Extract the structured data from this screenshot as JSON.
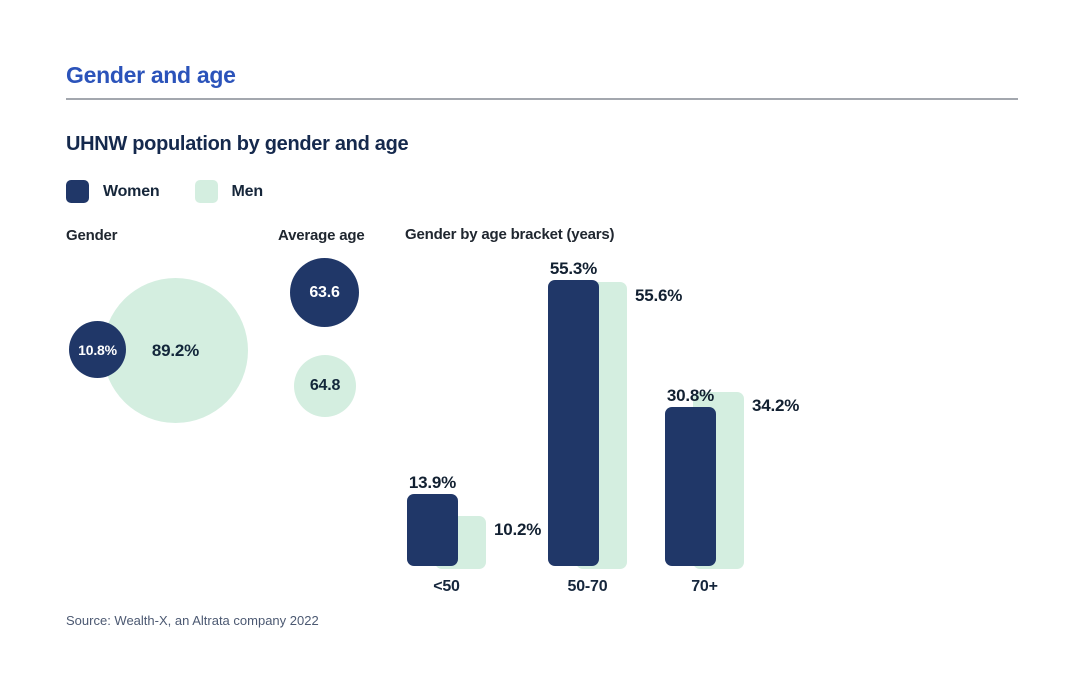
{
  "page": {
    "title": "Gender and age",
    "subtitle": "UHNW population by gender and age",
    "source": "Source: Wealth-X, an Altrata company 2022"
  },
  "colors": {
    "title_blue": "#2b53ba",
    "women_navy": "#203768",
    "men_mint": "#d4eee0",
    "dark_text": "#15294d",
    "source_text": "#4c5972",
    "divider": "#a3a7ae"
  },
  "legend": {
    "items": [
      {
        "label": "Women",
        "color": "#203768"
      },
      {
        "label": "Men",
        "color": "#d4eee0"
      }
    ],
    "position": "top-left"
  },
  "chart_data": [
    {
      "type": "pie",
      "variant": "proportional-bubbles",
      "title": "Gender",
      "unit": "%",
      "points": [
        {
          "label": "Women",
          "value": 10.8,
          "display": "10.8%",
          "color": "#203768"
        },
        {
          "label": "Men",
          "value": 89.2,
          "display": "89.2%",
          "color": "#d4eee0"
        }
      ]
    },
    {
      "type": "scatter",
      "variant": "value-bubbles",
      "title": "Average age",
      "unit": "years",
      "points": [
        {
          "label": "Women",
          "value": 63.6,
          "display": "63.6",
          "color": "#203768"
        },
        {
          "label": "Men",
          "value": 64.8,
          "display": "64.8",
          "color": "#d4eee0"
        }
      ]
    },
    {
      "type": "bar",
      "title": "Gender by age bracket (years)",
      "unit": "%",
      "categories": [
        "<50",
        "50-70",
        "70+"
      ],
      "series": [
        {
          "name": "Women",
          "values": [
            13.9,
            55.3,
            30.8
          ],
          "labels": [
            "13.9%",
            "55.3%",
            "30.8%"
          ],
          "color": "#203768"
        },
        {
          "name": "Men",
          "values": [
            10.2,
            55.6,
            34.2
          ],
          "labels": [
            "10.2%",
            "55.6%",
            "34.2%"
          ],
          "color": "#d4eee0"
        }
      ],
      "grid": false,
      "axes_visible": false,
      "ylim": [
        0,
        60
      ],
      "legend_position": "top-left"
    }
  ]
}
